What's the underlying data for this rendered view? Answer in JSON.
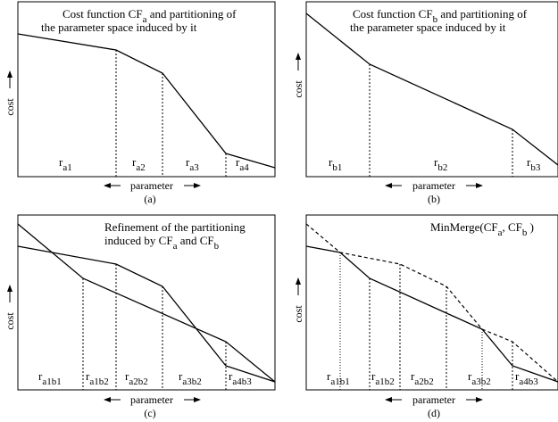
{
  "panels": {
    "a": {
      "caption": "(a)",
      "title_parts": [
        "Cost function CF",
        "a",
        " and partitioning of"
      ],
      "title_line2": "the parameter space induced by it",
      "y_label": "cost",
      "x_label": "parameter",
      "regions": [
        {
          "main": "r",
          "sub": "a1"
        },
        {
          "main": "r",
          "sub": "a2"
        },
        {
          "main": "r",
          "sub": "a3"
        },
        {
          "main": "r",
          "sub": "a4"
        }
      ]
    },
    "b": {
      "caption": "(b)",
      "title_parts": [
        "Cost function CF",
        "b",
        " and partitioning of"
      ],
      "title_line2": "the parameter space induced by it",
      "y_label": "cost",
      "x_label": "parameter",
      "regions": [
        {
          "main": "r",
          "sub": "b1"
        },
        {
          "main": "r",
          "sub": "b2"
        },
        {
          "main": "r",
          "sub": "b3"
        }
      ]
    },
    "c": {
      "caption": "(c)",
      "title_line1": "Refinement of the partitioning",
      "title_line2_parts": [
        "induced by CF",
        "a",
        " and CF",
        "b"
      ],
      "y_label": "cost",
      "x_label": "parameter",
      "regions": [
        {
          "main": "r",
          "sub": "a1b1"
        },
        {
          "main": "r",
          "sub": "a1b2"
        },
        {
          "main": "r",
          "sub": "a2b2"
        },
        {
          "main": "r",
          "sub": "a3b2"
        },
        {
          "main": "r",
          "sub": "a4b3"
        }
      ]
    },
    "d": {
      "caption": "(d)",
      "title_parts": [
        "MinMerge(CF",
        "a",
        ", CF",
        "b",
        " )"
      ],
      "y_label": "cost",
      "x_label": "parameter",
      "regions": [
        {
          "main": "r",
          "sub": "a1b1"
        },
        {
          "main": "r",
          "sub": "a1b2"
        },
        {
          "main": "r",
          "sub": "a2b2"
        },
        {
          "main": "r",
          "sub": "a3b2"
        },
        {
          "main": "r",
          "sub": "a4b3"
        }
      ]
    }
  }
}
